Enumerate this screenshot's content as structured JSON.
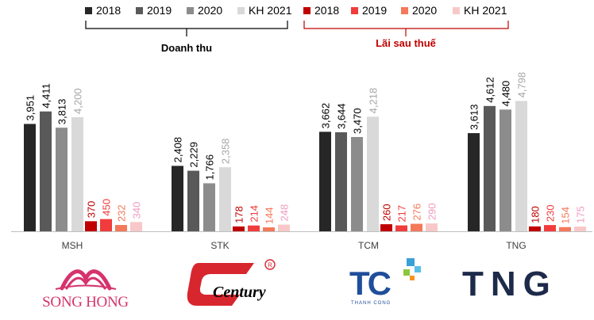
{
  "chart_data": {
    "type": "bar",
    "categories": [
      "MSH",
      "STK",
      "TCM",
      "TNG"
    ],
    "series": [
      {
        "name": "2018",
        "group": "revenue",
        "color": "#262626",
        "values": [
          3951,
          2408,
          3662,
          3613
        ]
      },
      {
        "name": "2019",
        "group": "revenue",
        "color": "#595959",
        "values": [
          4411,
          2229,
          3644,
          4612
        ]
      },
      {
        "name": "2020",
        "group": "revenue",
        "color": "#8c8c8c",
        "values": [
          3813,
          1766,
          3470,
          4480
        ]
      },
      {
        "name": "KH 2021",
        "group": "revenue",
        "color": "#d9d9d9",
        "values": [
          4200,
          2358,
          4218,
          4798
        ]
      },
      {
        "name": "2018",
        "group": "profit",
        "color": "#c00000",
        "values": [
          370,
          178,
          260,
          180
        ]
      },
      {
        "name": "2019",
        "group": "profit",
        "color": "#f03c3c",
        "values": [
          450,
          214,
          217,
          230
        ]
      },
      {
        "name": "2020",
        "group": "profit",
        "color": "#f4785a",
        "values": [
          232,
          144,
          276,
          154
        ]
      },
      {
        "name": "KH 2021",
        "group": "profit",
        "color": "#f8c8c8",
        "values": [
          340,
          248,
          290,
          175
        ]
      }
    ],
    "value_labels": {
      "revenue": [
        [
          "3,951",
          "4,411",
          "3,813",
          "4,200"
        ],
        [
          "2,408",
          "2,229",
          "1,766",
          "2,358"
        ],
        [
          "3,662",
          "3,644",
          "3,470",
          "4,218"
        ],
        [
          "3,613",
          "4,612",
          "4,480",
          "4,798"
        ]
      ],
      "profit": [
        [
          "370",
          "450",
          "232",
          "340"
        ],
        [
          "178",
          "214",
          "144",
          "248"
        ],
        [
          "260",
          "217",
          "276",
          "290"
        ],
        [
          "180",
          "230",
          "154",
          "175"
        ]
      ]
    },
    "legend": {
      "placement": "top",
      "revenue_group_label": "Doanh thu",
      "profit_group_label": "Lãi sau thuế"
    },
    "ylim": [
      0,
      5000
    ],
    "grid": false
  },
  "logos": {
    "msh": "SONG HONG",
    "stk": "Century",
    "tcm_main": "TC",
    "tcm_sub": "THANH CONG",
    "tng": "TNG"
  },
  "colors": {
    "profit_bracket": "#c00000",
    "revenue_bracket": "#000000",
    "axis": "#bfbfbf",
    "song_hong_pink": "#d6336c",
    "century_red": "#d7262e",
    "tc_blue": "#1f4e9a",
    "tng_navy": "#1e2a4a"
  }
}
